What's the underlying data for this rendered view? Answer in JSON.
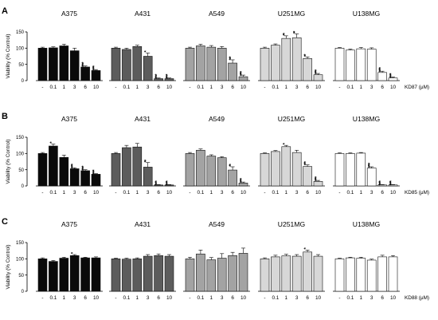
{
  "figure": {
    "ylabel": "Viability (% Control)",
    "x_tick_labels": [
      "-",
      "0.1",
      "1",
      "3",
      "6",
      "10"
    ],
    "colors": {
      "A375": "#0a0a0a",
      "A431": "#5c5c5c",
      "A549": "#a3a3a3",
      "U251MG": "#d7d7d7",
      "U138MG": "#ffffff",
      "edge": "#111111"
    }
  },
  "chart_data": [
    {
      "type": "bar",
      "panel_label": "A",
      "compound_label": "KD87 (μM)",
      "ylim": [
        0,
        150
      ],
      "yticks": [
        0,
        50,
        100,
        150
      ],
      "categories": [
        "-",
        "0.1",
        "1",
        "3",
        "6",
        "10"
      ],
      "series": [
        {
          "name": "A375",
          "values": [
            100,
            101,
            107,
            92,
            42,
            31
          ],
          "errors": [
            3,
            3,
            5,
            8,
            3,
            3
          ],
          "stars": [
            "",
            "",
            "",
            "",
            "****",
            "****"
          ]
        },
        {
          "name": "A431",
          "values": [
            100,
            96,
            105,
            75,
            6,
            6
          ],
          "errors": [
            3,
            4,
            4,
            10,
            2,
            2
          ],
          "stars": [
            "",
            "",
            "",
            "*",
            "****",
            "****"
          ]
        },
        {
          "name": "A549",
          "values": [
            100,
            107,
            103,
            100,
            54,
            12
          ],
          "errors": [
            3,
            5,
            5,
            5,
            10,
            5
          ],
          "stars": [
            "",
            "",
            "",
            "",
            "***",
            "****"
          ]
        },
        {
          "name": "U251MG",
          "values": [
            100,
            109,
            130,
            132,
            68,
            18
          ],
          "errors": [
            3,
            4,
            8,
            12,
            5,
            4
          ],
          "stars": [
            "",
            "",
            "**",
            "**",
            "**",
            "****"
          ]
        },
        {
          "name": "U138MG",
          "values": [
            100,
            94,
            98,
            97,
            25,
            8
          ],
          "errors": [
            2,
            3,
            4,
            4,
            4,
            3
          ],
          "stars": [
            "",
            "",
            "",
            "",
            "****",
            "****"
          ]
        }
      ]
    },
    {
      "type": "bar",
      "panel_label": "B",
      "compound_label": "KD85 (μM)",
      "ylim": [
        0,
        150
      ],
      "yticks": [
        0,
        50,
        100,
        150
      ],
      "categories": [
        "-",
        "0.1",
        "1",
        "3",
        "6",
        "10"
      ],
      "series": [
        {
          "name": "A375",
          "values": [
            100,
            123,
            88,
            53,
            47,
            36
          ],
          "errors": [
            3,
            6,
            7,
            3,
            3,
            2
          ],
          "stars": [
            "",
            "*",
            "",
            "****",
            "****",
            "****"
          ]
        },
        {
          "name": "A431",
          "values": [
            100,
            118,
            120,
            58,
            3,
            3
          ],
          "errors": [
            3,
            7,
            11,
            14,
            1,
            1
          ],
          "stars": [
            "",
            "",
            "",
            "**",
            "****",
            "****"
          ]
        },
        {
          "name": "A549",
          "values": [
            100,
            110,
            92,
            87,
            49,
            9
          ],
          "errors": [
            3,
            4,
            4,
            3,
            10,
            3
          ],
          "stars": [
            "",
            "",
            "",
            "",
            "**",
            "****"
          ]
        },
        {
          "name": "U251MG",
          "values": [
            100,
            106,
            121,
            103,
            60,
            14
          ],
          "errors": [
            2,
            3,
            4,
            7,
            5,
            3
          ],
          "stars": [
            "",
            "",
            "*",
            "",
            "***",
            "****"
          ]
        },
        {
          "name": "U138MG",
          "values": [
            100,
            100,
            101,
            55,
            3,
            3
          ],
          "errors": [
            2,
            2,
            2,
            4,
            1,
            1
          ],
          "stars": [
            "",
            "",
            "",
            "****",
            "****",
            "****"
          ]
        }
      ]
    },
    {
      "type": "bar",
      "panel_label": "C",
      "compound_label": "KD88 (μM)",
      "ylim": [
        0,
        150
      ],
      "yticks": [
        0,
        50,
        100,
        150
      ],
      "categories": [
        "-",
        "0.1",
        "1",
        "3",
        "6",
        "10"
      ],
      "series": [
        {
          "name": "A375",
          "values": [
            100,
            92,
            102,
            110,
            103,
            103
          ],
          "errors": [
            3,
            3,
            3,
            3,
            2,
            3
          ],
          "stars": [
            "",
            "",
            "",
            "*",
            "",
            ""
          ]
        },
        {
          "name": "A431",
          "values": [
            100,
            99,
            100,
            108,
            110,
            108
          ],
          "errors": [
            2,
            3,
            3,
            5,
            5,
            5
          ],
          "stars": [
            "",
            "",
            "",
            "",
            "",
            ""
          ]
        },
        {
          "name": "A549",
          "values": [
            100,
            115,
            97,
            102,
            110,
            117
          ],
          "errors": [
            5,
            12,
            7,
            14,
            10,
            16
          ],
          "stars": [
            "",
            "",
            "",
            "",
            "",
            ""
          ]
        },
        {
          "name": "U251MG",
          "values": [
            100,
            106,
            109,
            108,
            121,
            108
          ],
          "errors": [
            3,
            5,
            5,
            5,
            6,
            5
          ],
          "stars": [
            "",
            "",
            "",
            "",
            "*",
            ""
          ]
        },
        {
          "name": "U138MG",
          "values": [
            100,
            103,
            102,
            96,
            106,
            106
          ],
          "errors": [
            2,
            2,
            3,
            3,
            5,
            4
          ],
          "stars": [
            "",
            "",
            "",
            "",
            "",
            ""
          ]
        }
      ]
    }
  ]
}
